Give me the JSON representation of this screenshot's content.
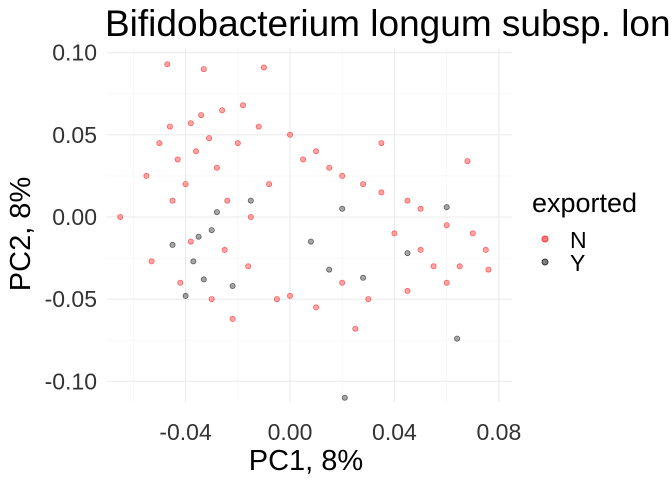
{
  "chart_data": {
    "type": "scatter",
    "title": "Bifidobacterium longum subsp. lon",
    "xlabel": "PC1, 8%",
    "ylabel": "PC2, 8%",
    "xlim": [
      -0.07,
      0.085
    ],
    "ylim": [
      -0.12,
      0.105
    ],
    "xticks": [
      -0.04,
      0.0,
      0.04,
      0.08
    ],
    "xtick_labels": [
      "-0.04",
      "0.00",
      "0.04",
      "0.08"
    ],
    "yticks": [
      -0.1,
      -0.05,
      0.0,
      0.05,
      0.1
    ],
    "ytick_labels": [
      "-0.10",
      "-0.05",
      "0.00",
      "0.05",
      "0.10"
    ],
    "grid": true,
    "legend": {
      "title": "exported",
      "position": "right",
      "entries": [
        {
          "label": "N",
          "color": "#ff0000"
        },
        {
          "label": "Y",
          "color": "#000000"
        }
      ]
    },
    "series": [
      {
        "name": "N",
        "color": "#ff0000",
        "points": [
          [
            -0.065,
            0.0
          ],
          [
            -0.055,
            0.025
          ],
          [
            -0.053,
            -0.027
          ],
          [
            -0.05,
            0.045
          ],
          [
            -0.047,
            0.093
          ],
          [
            -0.046,
            0.055
          ],
          [
            -0.045,
            0.01
          ],
          [
            -0.043,
            0.035
          ],
          [
            -0.042,
            -0.04
          ],
          [
            -0.04,
            0.02
          ],
          [
            -0.038,
            0.057
          ],
          [
            -0.038,
            -0.015
          ],
          [
            -0.036,
            0.04
          ],
          [
            -0.034,
            0.062
          ],
          [
            -0.033,
            0.09
          ],
          [
            -0.031,
            0.048
          ],
          [
            -0.03,
            -0.05
          ],
          [
            -0.028,
            0.03
          ],
          [
            -0.026,
            0.065
          ],
          [
            -0.024,
            0.01
          ],
          [
            -0.022,
            -0.062
          ],
          [
            -0.02,
            0.045
          ],
          [
            -0.018,
            0.068
          ],
          [
            -0.016,
            -0.03
          ],
          [
            -0.012,
            0.055
          ],
          [
            -0.01,
            0.091
          ],
          [
            -0.008,
            0.02
          ],
          [
            -0.005,
            -0.05
          ],
          [
            0.0,
            0.05
          ],
          [
            0.005,
            0.035
          ],
          [
            0.01,
            0.04
          ],
          [
            0.015,
            0.03
          ],
          [
            0.02,
            0.025
          ],
          [
            0.025,
            -0.068
          ],
          [
            0.028,
            0.02
          ],
          [
            0.035,
            0.015
          ],
          [
            0.04,
            -0.01
          ],
          [
            0.045,
            0.01
          ],
          [
            0.05,
            0.005
          ],
          [
            0.055,
            -0.03
          ],
          [
            0.06,
            -0.005
          ],
          [
            0.065,
            -0.03
          ],
          [
            0.068,
            0.034
          ],
          [
            0.07,
            -0.01
          ],
          [
            0.075,
            -0.02
          ],
          [
            0.076,
            -0.032
          ],
          [
            0.06,
            -0.04
          ],
          [
            0.05,
            -0.02
          ],
          [
            0.045,
            -0.045
          ],
          [
            0.03,
            -0.05
          ],
          [
            0.02,
            -0.04
          ],
          [
            0.01,
            -0.055
          ],
          [
            0.0,
            -0.048
          ],
          [
            -0.015,
            0.0
          ],
          [
            -0.025,
            -0.02
          ],
          [
            0.035,
            0.045
          ]
        ]
      },
      {
        "name": "Y",
        "color": "#000000",
        "points": [
          [
            -0.045,
            -0.017
          ],
          [
            -0.04,
            -0.048
          ],
          [
            -0.037,
            -0.027
          ],
          [
            -0.035,
            -0.012
          ],
          [
            -0.033,
            -0.038
          ],
          [
            -0.03,
            -0.008
          ],
          [
            -0.028,
            0.003
          ],
          [
            -0.022,
            -0.042
          ],
          [
            -0.015,
            0.01
          ],
          [
            0.008,
            -0.015
          ],
          [
            0.015,
            -0.032
          ],
          [
            0.02,
            0.005
          ],
          [
            0.028,
            -0.037
          ],
          [
            0.045,
            -0.022
          ],
          [
            0.06,
            0.006
          ],
          [
            0.064,
            -0.074
          ],
          [
            0.021,
            -0.11
          ]
        ]
      }
    ]
  }
}
